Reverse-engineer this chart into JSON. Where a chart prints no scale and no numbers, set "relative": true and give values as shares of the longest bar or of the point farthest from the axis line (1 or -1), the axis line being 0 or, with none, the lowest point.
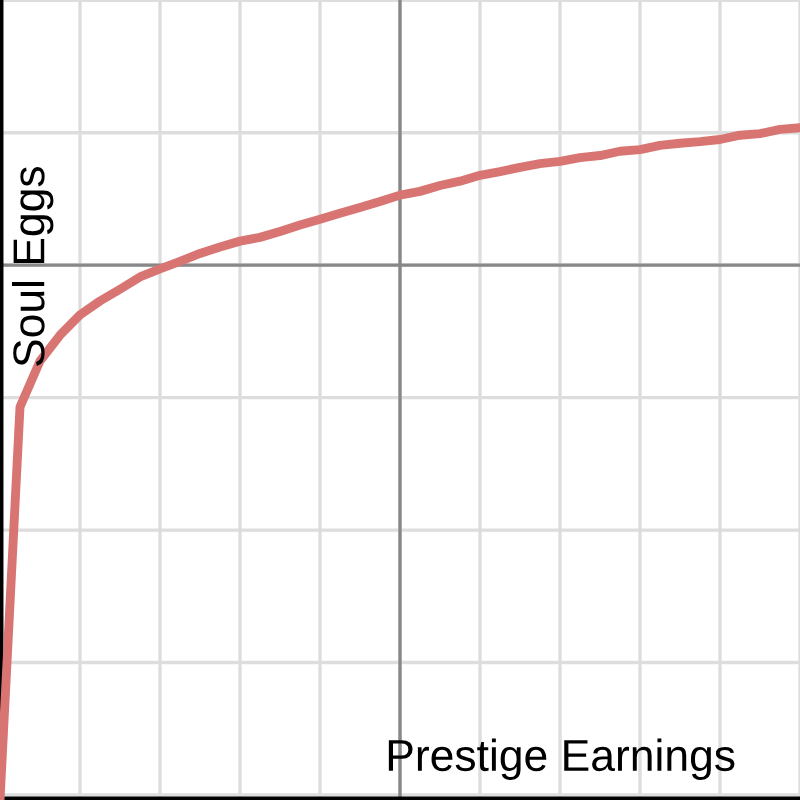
{
  "chart_data": {
    "type": "line",
    "relative": true,
    "xlabel": "Prestige Earnings",
    "ylabel": "Soul Eggs",
    "categories": [
      null,
      null,
      null,
      null,
      null,
      null,
      null,
      null,
      null,
      null,
      null,
      null,
      null,
      null,
      null,
      null,
      null,
      null,
      null,
      null,
      null,
      null,
      null,
      null,
      null,
      null,
      null,
      null,
      null,
      null,
      null,
      null,
      null,
      null,
      null,
      null,
      null,
      null,
      null,
      null,
      null
    ],
    "series": [
      {
        "color": "#d87572",
        "values": [
          -1.0,
          -0.265,
          -0.179,
          -0.131,
          -0.093,
          -0.067,
          -0.045,
          -0.022,
          -0.007,
          0.007,
          0.022,
          0.034,
          0.045,
          0.052,
          0.063,
          0.075,
          0.086,
          0.097,
          0.108,
          0.119,
          0.131,
          0.138,
          0.149,
          0.157,
          0.168,
          0.175,
          0.183,
          0.19,
          0.194,
          0.201,
          0.205,
          0.213,
          0.216,
          0.224,
          0.228,
          0.231,
          0.235,
          0.243,
          0.246,
          0.254,
          0.257
        ]
      }
    ],
    "grid": true,
    "marker": "none",
    "line_style": "solid"
  }
}
